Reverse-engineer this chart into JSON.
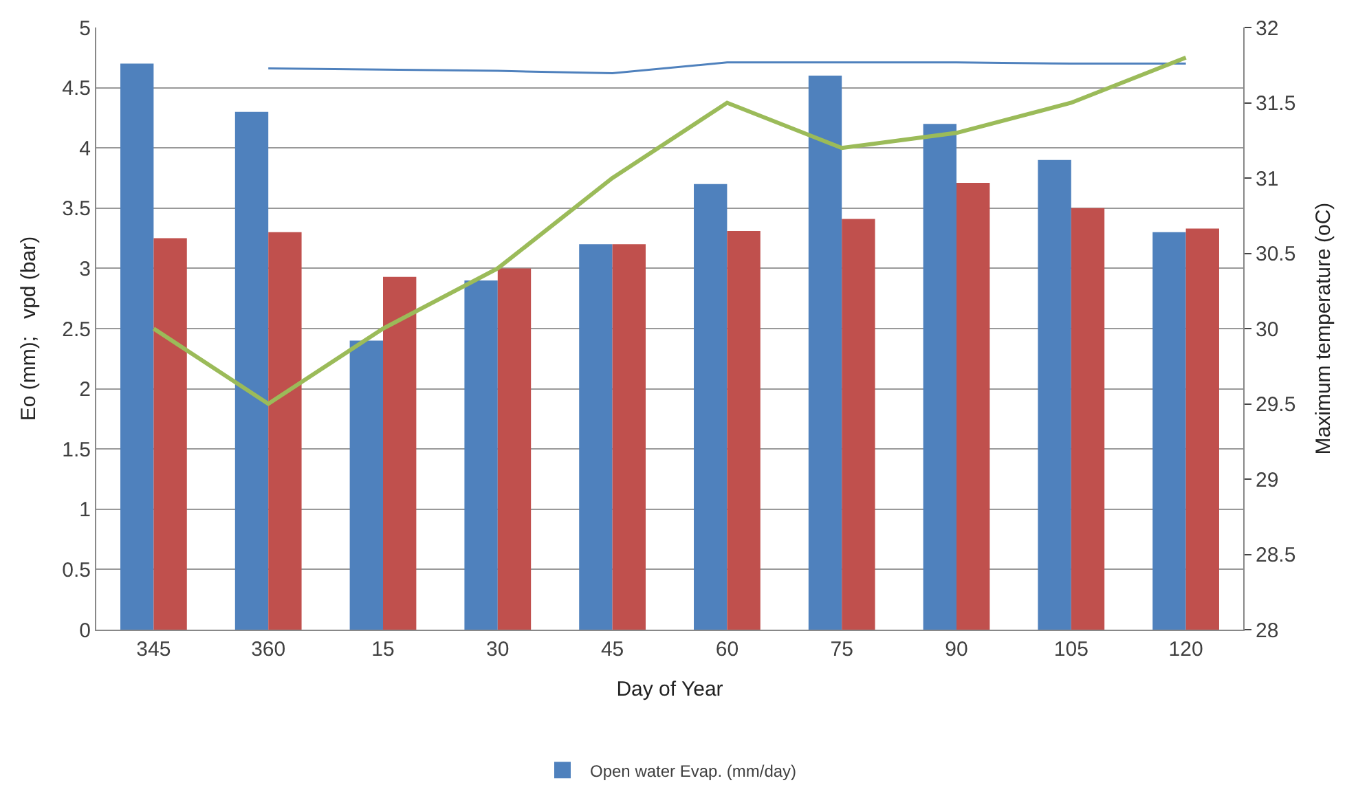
{
  "chart_data": {
    "type": "bar",
    "xlabel": "Day of Year",
    "ylabel": "Eo (mm);   vpd (bar)",
    "y2label": "Maximum temperature (oC)",
    "categories": [
      "345",
      "360",
      "15",
      "30",
      "45",
      "60",
      "75",
      "90",
      "105",
      "120"
    ],
    "series": [
      {
        "name": "Open water Evap. (mm/day)",
        "color": "#4f81bd",
        "values": [
          4.7,
          4.3,
          2.4,
          2.9,
          3.2,
          3.7,
          4.6,
          4.2,
          3.9,
          3.3
        ]
      },
      {
        "color": "#c0504d",
        "values": [
          3.25,
          3.3,
          2.93,
          3.0,
          3.2,
          3.31,
          3.41,
          3.71,
          3.5,
          3.33
        ]
      },
      {
        "type": "line",
        "axis": "y2",
        "color": "#9bbb59",
        "values": [
          30.0,
          29.5,
          30.0,
          30.4,
          31.0,
          31.5,
          31.2,
          31.3,
          31.5,
          31.8
        ]
      },
      {
        "type": "line",
        "color": "#4f81bd",
        "values": [
          null,
          4.66,
          4.65,
          4.64,
          4.62,
          4.71,
          4.71,
          4.71,
          4.7,
          4.7
        ]
      }
    ],
    "ylim": [
      0,
      5
    ],
    "yticks": [
      0,
      0.5,
      1,
      1.5,
      2,
      2.5,
      3,
      3.5,
      4,
      4.5,
      5
    ],
    "y2lim": [
      28,
      32
    ],
    "y2ticks": [
      28,
      28.5,
      29,
      29.5,
      30,
      30.5,
      31,
      31.5,
      32
    ],
    "grid": "y",
    "legend": "bottom"
  }
}
